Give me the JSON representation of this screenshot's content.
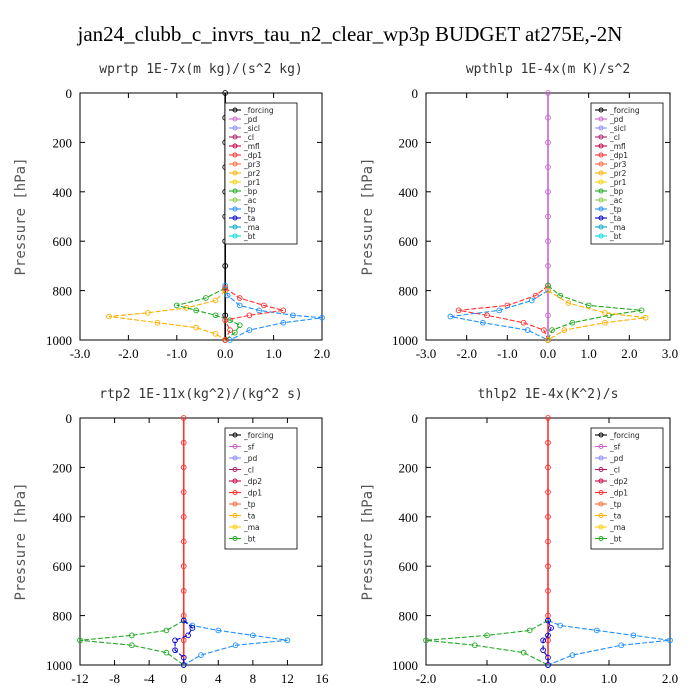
{
  "title": "jan24_clubb_c_invrs_tau_n2_clear_wp3p  BUDGET at275E,-2N",
  "chart_data": [
    {
      "type": "line",
      "title": "wprtp   1E-7x(m kg)/(s^2 kg)",
      "ylabel": "Pressure [hPa]",
      "xlim": [
        -3.0,
        2.0
      ],
      "ylim": [
        1000,
        0
      ],
      "xticks": [
        "-3.0",
        "-2.0",
        "-1.0",
        "0.0",
        "1.0",
        "2.0"
      ],
      "yticks": [
        "0",
        "200",
        "400",
        "600",
        "800",
        "1000"
      ],
      "legend_position": "top-right",
      "legend": [
        "_forcing",
        "_pd",
        "_sicl",
        "_cl",
        "_mfl",
        "_dp1",
        "_pr3",
        "_pr2",
        "_pr1",
        "_bp",
        "_ac",
        "_tp",
        "_ta",
        "_ma",
        "_bt"
      ],
      "series": [
        {
          "name": "_forcing",
          "color": "#000000",
          "x": [
            0,
            0,
            0,
            0,
            0,
            0,
            0,
            0,
            0,
            0,
            0
          ],
          "y": [
            0,
            100,
            200,
            300,
            400,
            500,
            600,
            700,
            800,
            900,
            1000
          ]
        },
        {
          "name": "_tp",
          "color": "#1e90ff",
          "x": [
            0,
            0.05,
            0.3,
            0.7,
            1.4,
            2.0,
            1.2,
            0.5,
            0.1
          ],
          "y": [
            780,
            820,
            860,
            880,
            900,
            910,
            930,
            960,
            1000
          ]
        },
        {
          "name": "_pr1",
          "color": "#ffb000",
          "x": [
            0,
            -0.2,
            -0.8,
            -1.6,
            -2.4,
            -1.4,
            -0.6,
            -0.2,
            0
          ],
          "y": [
            800,
            840,
            870,
            890,
            905,
            930,
            950,
            975,
            1000
          ]
        },
        {
          "name": "_bp",
          "color": "#22aa22",
          "x": [
            0,
            -0.4,
            -1.0,
            -0.6,
            -0.2,
            0.1,
            0.3,
            0.2,
            0
          ],
          "y": [
            790,
            830,
            860,
            880,
            900,
            920,
            940,
            970,
            1000
          ]
        },
        {
          "name": "_pr3",
          "color": "#ff3030",
          "x": [
            0,
            0.3,
            0.8,
            1.2,
            0.5,
            0,
            0.1,
            0
          ],
          "y": [
            790,
            830,
            860,
            880,
            900,
            920,
            960,
            1000
          ]
        }
      ]
    },
    {
      "type": "line",
      "title": "wpthlp   1E-4x(m K)/s^2",
      "ylabel": "Pressure [hPa]",
      "xlim": [
        -3.0,
        3.0
      ],
      "ylim": [
        1000,
        0
      ],
      "xticks": [
        "-3.0",
        "-2.0",
        "-1.0",
        "0.0",
        "1.0",
        "2.0",
        "3.0"
      ],
      "yticks": [
        "0",
        "200",
        "400",
        "600",
        "800",
        "1000"
      ],
      "legend_position": "top-right",
      "legend": [
        "_forcing",
        "_pd",
        "_sicl",
        "_cl",
        "_mfl",
        "_dp1",
        "_pr3",
        "_pr2",
        "_pr1",
        "_bp",
        "_ac",
        "_tp",
        "_ta",
        "_ma",
        "_bt"
      ],
      "series": [
        {
          "name": "_forcing",
          "color": "#cc66cc",
          "x": [
            0,
            0,
            0,
            0,
            0,
            0,
            0,
            0,
            0,
            0,
            0
          ],
          "y": [
            0,
            100,
            200,
            300,
            400,
            500,
            600,
            700,
            800,
            900,
            1000
          ]
        },
        {
          "name": "_pr3",
          "color": "#ff3030",
          "x": [
            0,
            -0.3,
            -1.0,
            -2.2,
            -1.5,
            -0.6,
            -0.1,
            0
          ],
          "y": [
            780,
            820,
            860,
            880,
            900,
            930,
            960,
            1000
          ]
        },
        {
          "name": "_tp",
          "color": "#1e90ff",
          "x": [
            0,
            -0.4,
            -1.2,
            -2.4,
            -1.6,
            -0.5,
            0
          ],
          "y": [
            800,
            840,
            880,
            905,
            930,
            960,
            1000
          ]
        },
        {
          "name": "_bp",
          "color": "#22aa22",
          "x": [
            0,
            0.3,
            1.0,
            2.3,
            1.5,
            0.6,
            0.1,
            0
          ],
          "y": [
            780,
            820,
            860,
            880,
            900,
            930,
            960,
            1000
          ]
        },
        {
          "name": "_pr1",
          "color": "#ffb000",
          "x": [
            0,
            0.5,
            1.4,
            2.4,
            1.4,
            0.4,
            0
          ],
          "y": [
            800,
            850,
            890,
            910,
            930,
            960,
            1000
          ]
        }
      ]
    },
    {
      "type": "line",
      "title": "rtp2   1E-11x(kg^2)/(kg^2 s)",
      "ylabel": "Pressure [hPa]",
      "xlim": [
        -12,
        16
      ],
      "ylim": [
        1000,
        0
      ],
      "xticks": [
        "-12",
        "-8",
        "-4",
        "0",
        "4",
        "8",
        "12",
        "16"
      ],
      "yticks": [
        "0",
        "200",
        "400",
        "600",
        "800",
        "1000"
      ],
      "legend_position": "top-right",
      "legend": [
        "_forcing",
        "_sf",
        "_pd",
        "_cl",
        "_dp2",
        "_dp1",
        "_tp",
        "_ta",
        "_ma",
        "_bt"
      ],
      "series": [
        {
          "name": "_forcing",
          "color": "#ff3030",
          "x": [
            0,
            0,
            0,
            0,
            0,
            0,
            0,
            0,
            0,
            0,
            0
          ],
          "y": [
            0,
            100,
            200,
            300,
            400,
            500,
            600,
            700,
            800,
            900,
            1000
          ]
        },
        {
          "name": "_dp1",
          "color": "#22aa22",
          "x": [
            0,
            -2,
            -6,
            -12,
            -6,
            -2,
            0
          ],
          "y": [
            820,
            860,
            880,
            900,
            920,
            950,
            1000
          ]
        },
        {
          "name": "_tp",
          "color": "#1e90ff",
          "x": [
            0,
            1,
            4,
            8,
            12,
            6,
            2,
            0
          ],
          "y": [
            820,
            840,
            860,
            880,
            900,
            920,
            960,
            1000
          ]
        },
        {
          "name": "_ta",
          "color": "#0000cc",
          "x": [
            0,
            1,
            0.5,
            -1,
            -1,
            0,
            0
          ],
          "y": [
            820,
            850,
            880,
            900,
            940,
            970,
            1000
          ]
        }
      ]
    },
    {
      "type": "line",
      "title": "thlp2   1E-4x(K^2)/s",
      "ylabel": "Pressure [hPa]",
      "xlim": [
        -2.0,
        2.0
      ],
      "ylim": [
        1000,
        0
      ],
      "xticks": [
        "-2.0",
        "-1.0",
        "0.0",
        "1.0",
        "2.0"
      ],
      "yticks": [
        "0",
        "200",
        "400",
        "600",
        "800",
        "1000"
      ],
      "legend_position": "top-right",
      "legend": [
        "_forcing",
        "_sf",
        "_pd",
        "_cl",
        "_dp2",
        "_dp1",
        "_tp",
        "_ta",
        "_ma",
        "_bt"
      ],
      "series": [
        {
          "name": "_forcing",
          "color": "#ff3030",
          "x": [
            0,
            0,
            0,
            0,
            0,
            0,
            0,
            0,
            0,
            0,
            0
          ],
          "y": [
            0,
            100,
            200,
            300,
            400,
            500,
            600,
            700,
            800,
            900,
            1000
          ]
        },
        {
          "name": "_dp1",
          "color": "#22aa22",
          "x": [
            0,
            -0.3,
            -1.0,
            -2.0,
            -1.2,
            -0.4,
            0
          ],
          "y": [
            820,
            860,
            880,
            900,
            920,
            950,
            1000
          ]
        },
        {
          "name": "_tp",
          "color": "#1e90ff",
          "x": [
            0,
            0.2,
            0.8,
            1.4,
            2.0,
            1.2,
            0.4,
            0
          ],
          "y": [
            820,
            840,
            860,
            880,
            900,
            920,
            960,
            1000
          ]
        },
        {
          "name": "_ta",
          "color": "#0000cc",
          "x": [
            0,
            0.05,
            0,
            -0.08,
            -0.08,
            0,
            0
          ],
          "y": [
            820,
            850,
            880,
            900,
            940,
            970,
            1000
          ]
        }
      ]
    }
  ]
}
